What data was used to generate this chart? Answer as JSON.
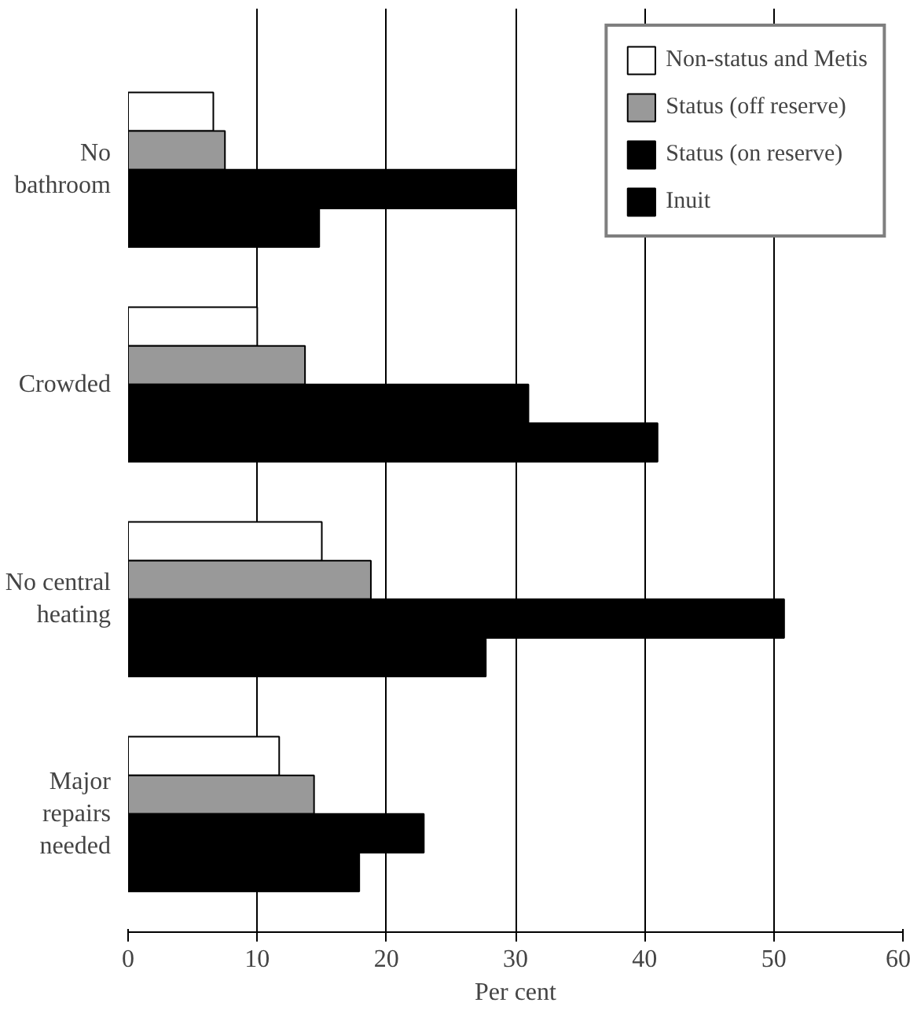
{
  "chart_data": {
    "type": "bar",
    "orientation": "horizontal",
    "xlabel": "Per cent",
    "categories": [
      "No bathroom",
      "Crowded",
      "No central heating",
      "Major repairs needed"
    ],
    "series": [
      {
        "name": "Non-status and Metis",
        "color": "#ffffff",
        "values": [
          6.6,
          10,
          15,
          11.7
        ]
      },
      {
        "name": "Status (off reserve)",
        "color": "#999999",
        "values": [
          7.5,
          13.7,
          18.8,
          14.4
        ]
      },
      {
        "name": "Status (on reserve)",
        "color": "#000000",
        "values": [
          30,
          31,
          50.8,
          22.9
        ]
      },
      {
        "name": "Inuit",
        "color": "#000000",
        "values": [
          14.8,
          41,
          27.7,
          17.9
        ]
      }
    ],
    "xlim": [
      0,
      60
    ],
    "xticks": [
      0,
      10,
      20,
      30,
      40,
      50,
      60
    ],
    "grid": "x",
    "legend": "top right"
  }
}
